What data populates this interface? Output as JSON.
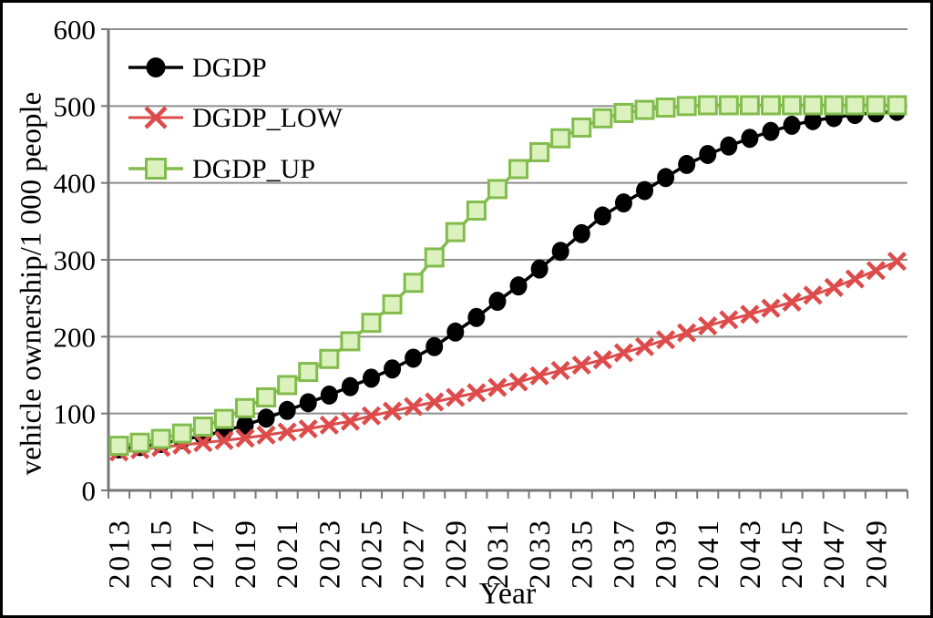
{
  "figure": {
    "background": "#ffffff",
    "border_color": "#000000"
  },
  "chart_data": {
    "type": "line",
    "title": "",
    "xlabel": "Year",
    "ylabel": "vehicle ownership/1 000 people",
    "ylim": [
      0,
      600
    ],
    "y_ticks": [
      0,
      100,
      200,
      300,
      400,
      500,
      600
    ],
    "grid": "horizontal",
    "gridline_color": "#8e8e8e",
    "axis_color": "#777777",
    "legend_position": "top-left-inside",
    "x": [
      2013,
      2014,
      2015,
      2016,
      2017,
      2018,
      2019,
      2020,
      2021,
      2022,
      2023,
      2024,
      2025,
      2026,
      2027,
      2028,
      2029,
      2030,
      2031,
      2032,
      2033,
      2034,
      2035,
      2036,
      2037,
      2038,
      2039,
      2040,
      2041,
      2042,
      2043,
      2044,
      2045,
      2046,
      2047,
      2048,
      2049,
      2050
    ],
    "x_tick_labels": [
      "2013",
      "2015",
      "2017",
      "2019",
      "2021",
      "2023",
      "2025",
      "2027",
      "2029",
      "2031",
      "2033",
      "2035",
      "2037",
      "2039",
      "2041",
      "2043",
      "2045",
      "2047",
      "2049"
    ],
    "series": [
      {
        "name": "DGDP",
        "color": "#000000",
        "marker": "circle",
        "marker_fill": "#000000",
        "values": [
          54,
          57,
          61,
          66,
          71,
          77,
          85,
          94,
          104,
          114,
          124,
          135,
          146,
          158,
          172,
          187,
          206,
          225,
          246,
          266,
          288,
          311,
          334,
          357,
          374,
          390,
          407,
          424,
          437,
          448,
          458,
          467,
          475,
          481,
          485,
          489,
          491,
          493
        ]
      },
      {
        "name": "DGDP_LOW",
        "color": "#dd4b4b",
        "marker": "x",
        "marker_fill": "#dd4b4b",
        "values": [
          50,
          53,
          56,
          59,
          62,
          65,
          68,
          72,
          76,
          80,
          85,
          90,
          97,
          103,
          109,
          115,
          121,
          127,
          134,
          141,
          149,
          156,
          163,
          170,
          179,
          187,
          196,
          205,
          214,
          222,
          229,
          237,
          245,
          254,
          264,
          275,
          286,
          298
        ]
      },
      {
        "name": "DGDP_UP",
        "color": "#82bc4c",
        "marker": "square",
        "marker_fill": "#dcf2be",
        "values": [
          58,
          62,
          67,
          74,
          83,
          93,
          107,
          121,
          137,
          154,
          171,
          194,
          218,
          242,
          270,
          303,
          336,
          364,
          392,
          418,
          440,
          458,
          472,
          484,
          491,
          495,
          498,
          500,
          501,
          501,
          501,
          501,
          501,
          501,
          501,
          501,
          501,
          501
        ]
      }
    ]
  }
}
